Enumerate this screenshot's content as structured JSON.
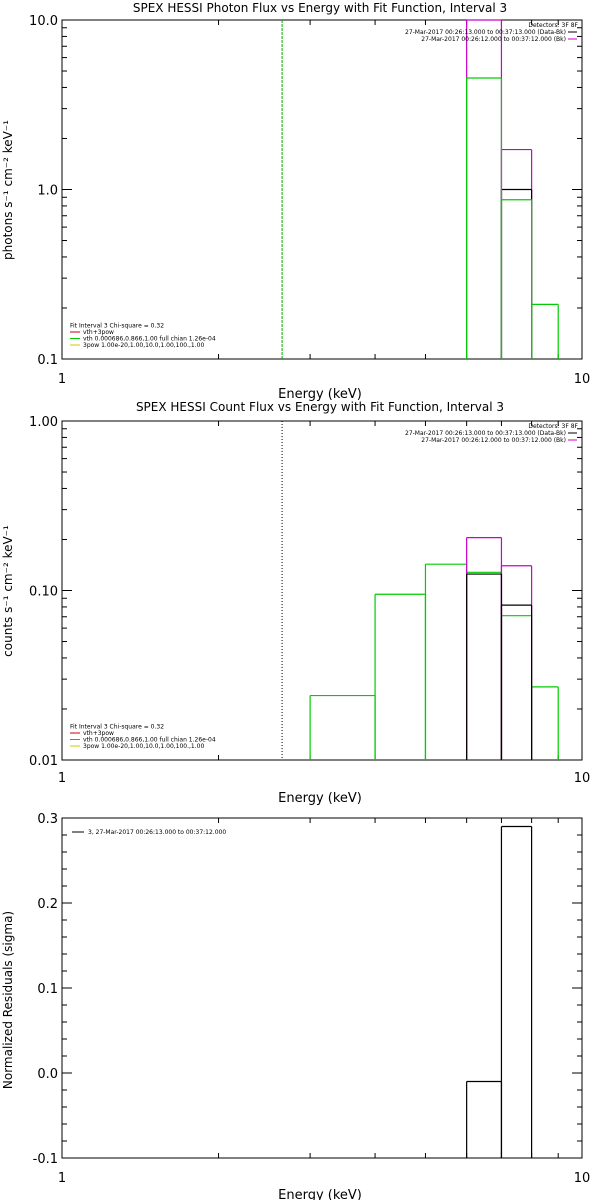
{
  "chart_data": [
    {
      "type": "line",
      "title": "SPEX HESSI Photon Flux vs Energy with Fit Function, Interval 3",
      "xlabel": "Energy (keV)",
      "ylabel": "photons s⁻¹ cm⁻² keV⁻¹",
      "xscale": "log",
      "yscale": "log",
      "xlim": [
        1,
        10
      ],
      "ylim": [
        0.1,
        10
      ],
      "x_tick_labels": [
        "1",
        "10"
      ],
      "y_tick_labels": [
        "10.0",
        "1.0",
        "0.1"
      ],
      "y_tick_values": [
        10,
        1,
        0.1
      ],
      "grid": false,
      "colors": {
        "data": "#000000",
        "bk": "#cc00cc",
        "fit": "#00cc00",
        "marker": "#00aa00"
      },
      "legend_top": {
        "placement": "top-right",
        "header": "Detectors: 3F 8F",
        "entries": [
          {
            "label": "27-Mar-2017 00:26:13.000 to 00:37:13.000 (Data-Bk)",
            "color": "#000000"
          },
          {
            "label": "27-Mar-2017 00:26:12.000 to 00:37:12.000 (Bk)",
            "color": "#cc00cc"
          }
        ]
      },
      "legend_bottom": {
        "placement": "bottom-left",
        "header": "Fit Interval 3   Chi-square = 0.32",
        "entries": [
          {
            "label": "vth+3pow",
            "color": "#cc0000"
          },
          {
            "label": "vth 0.000686,0.866,1.00  full chian 1.26e-04",
            "color": "#00cc00"
          },
          {
            "label": "3pow 1.00e-20,1.00,10.0,1.00,100.,1.00",
            "color": "#cccc00"
          }
        ]
      },
      "vline": {
        "x": 2.65,
        "color": "#00aa00",
        "style": "dashed"
      },
      "series": [
        {
          "role": "bk",
          "color": "#cc00cc",
          "steps": [
            [
              6,
              7,
              10
            ],
            [
              7,
              8,
              1.72
            ]
          ]
        },
        {
          "role": "data",
          "color": "#000000",
          "steps": [
            [
              7,
              8,
              1.0
            ]
          ]
        },
        {
          "role": "fit",
          "color": "#00cc00",
          "steps": [
            [
              6,
              7,
              4.55
            ],
            [
              7,
              8,
              0.87
            ],
            [
              8,
              9,
              0.21
            ]
          ]
        }
      ]
    },
    {
      "type": "line",
      "title": "SPEX HESSI Count Flux vs Energy with Fit Function, Interval 3",
      "xlabel": "Energy (keV)",
      "ylabel": "counts s⁻¹ cm⁻² keV⁻¹",
      "xscale": "log",
      "yscale": "log",
      "xlim": [
        1,
        10
      ],
      "ylim": [
        0.01,
        1
      ],
      "x_tick_labels": [
        "1",
        "10"
      ],
      "y_tick_labels": [
        "1.00",
        "0.10",
        "0.01"
      ],
      "y_tick_values": [
        1,
        0.1,
        0.01
      ],
      "grid": false,
      "colors": {
        "data": "#000000",
        "bk": "#cc00cc",
        "fit": "#00cc00",
        "marker": "#000000"
      },
      "legend_top": {
        "placement": "top-right",
        "header": "Detectors: 3F 8F",
        "entries": [
          {
            "label": "27-Mar-2017 00:26:13.000 to 00:37:13.000 (Data-Bk)",
            "color": "#000000"
          },
          {
            "label": "27-Mar-2017 00:26:12.000 to 00:37:12.000 (Bk)",
            "color": "#cc00cc"
          }
        ]
      },
      "legend_bottom": {
        "placement": "bottom-left",
        "header": "Fit Interval 3   Chi-square = 0.32",
        "entries": [
          {
            "label": "vth+3pow",
            "color": "#cc0000"
          },
          {
            "label": "vth 0.000686,0.866,1.00  full chian 1.26e-04",
            "color": "#00cc00"
          },
          {
            "label": "3pow 1.00e-20,1.00,10.0,1.00,100.,1.00",
            "color": "#cccc00"
          }
        ]
      },
      "vline": {
        "x": 2.65,
        "color": "#000000",
        "style": "dotted"
      },
      "series": [
        {
          "role": "fit",
          "color": "#00cc00",
          "steps": [
            [
              3,
              4,
              0.024
            ],
            [
              4,
              5,
              0.095
            ],
            [
              5,
              6,
              0.143
            ],
            [
              6,
              7,
              0.128
            ],
            [
              7,
              8,
              0.071
            ],
            [
              8,
              9,
              0.027
            ]
          ]
        },
        {
          "role": "bk",
          "color": "#cc00cc",
          "steps": [
            [
              6,
              7,
              0.205
            ],
            [
              7,
              8,
              0.14
            ]
          ]
        },
        {
          "role": "data",
          "color": "#000000",
          "steps": [
            [
              6,
              7,
              0.125
            ],
            [
              7,
              8,
              0.082
            ]
          ]
        }
      ]
    },
    {
      "type": "line",
      "title": "",
      "xlabel": "Energy (keV)",
      "ylabel": "Normalized Residuals (sigma)",
      "xscale": "log",
      "yscale": "linear",
      "xlim": [
        1,
        10
      ],
      "ylim": [
        -0.1,
        0.3
      ],
      "x_tick_labels": [
        "1",
        "10"
      ],
      "y_tick_labels": [
        "0.3",
        "0.2",
        "0.1",
        "0.0",
        "-0.1"
      ],
      "y_tick_values": [
        0.3,
        0.2,
        0.1,
        0.0,
        -0.1
      ],
      "grid": false,
      "legend_top": {
        "placement": "top-left",
        "header": "",
        "entries": [
          {
            "label": "3, 27-Mar-2017 00:26:13.000 to 00:37:12.000",
            "color": "#000000"
          }
        ]
      },
      "series": [
        {
          "role": "residuals",
          "color": "#000000",
          "steps": [
            [
              6,
              7,
              -0.01
            ],
            [
              7,
              8,
              0.29
            ]
          ]
        }
      ]
    }
  ]
}
